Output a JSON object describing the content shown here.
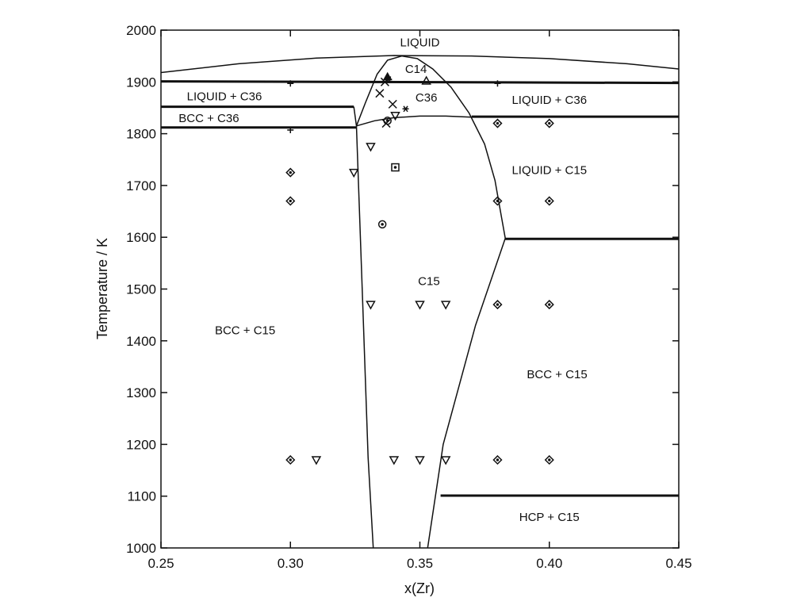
{
  "chart_data": {
    "type": "scatter",
    "title": "",
    "xlabel": "x(Zr)",
    "ylabel": "Temperature / K",
    "xlim": [
      0.25,
      0.45
    ],
    "ylim": [
      1000,
      2000
    ],
    "x_ticks": [
      "0.25",
      "0.30",
      "0.35",
      "0.40",
      "0.45"
    ],
    "y_ticks": [
      "1000",
      "1100",
      "1200",
      "1300",
      "1400",
      "1500",
      "1600",
      "1700",
      "1800",
      "1900",
      "2000"
    ],
    "grid": false,
    "legend": "none",
    "regions": [
      {
        "label": "LIQUID",
        "x": 0.35,
        "y": 1976
      },
      {
        "label": "C14",
        "x": 0.3485,
        "y": 1925
      },
      {
        "label": "LIQUID + C36",
        "x": 0.2745,
        "y": 1872
      },
      {
        "label": "C36",
        "x": 0.3525,
        "y": 1870
      },
      {
        "label": "LIQUID + C36",
        "x": 0.4,
        "y": 1865
      },
      {
        "label": "BCC + C36",
        "x": 0.2685,
        "y": 1830
      },
      {
        "label": "LIQUID + C15",
        "x": 0.4,
        "y": 1730
      },
      {
        "label": "C15",
        "x": 0.3535,
        "y": 1515
      },
      {
        "label": "BCC + C15",
        "x": 0.2825,
        "y": 1420
      },
      {
        "label": "BCC + C15",
        "x": 0.403,
        "y": 1335
      },
      {
        "label": "HCP + C15",
        "x": 0.4,
        "y": 1060
      }
    ],
    "boundaries": [
      {
        "style": "thin",
        "points": [
          [
            0.25,
            1918
          ],
          [
            0.28,
            1935
          ],
          [
            0.31,
            1946
          ],
          [
            0.34,
            1951
          ],
          [
            0.37,
            1950
          ],
          [
            0.4,
            1945
          ],
          [
            0.43,
            1935
          ],
          [
            0.45,
            1925
          ]
        ]
      },
      {
        "style": "thin",
        "points": [
          [
            0.3255,
            1815
          ],
          [
            0.329,
            1860
          ],
          [
            0.3335,
            1915
          ],
          [
            0.3375,
            1942
          ],
          [
            0.343,
            1950
          ],
          [
            0.349,
            1945
          ],
          [
            0.355,
            1925
          ],
          [
            0.362,
            1890
          ],
          [
            0.369,
            1840
          ],
          [
            0.375,
            1780
          ],
          [
            0.379,
            1710
          ],
          [
            0.3815,
            1640
          ],
          [
            0.383,
            1598
          ]
        ]
      },
      {
        "style": "thin",
        "points": [
          [
            0.3255,
            1815
          ],
          [
            0.3325,
            1825
          ],
          [
            0.34,
            1831
          ],
          [
            0.35,
            1834
          ],
          [
            0.36,
            1834
          ],
          [
            0.37,
            1832
          ]
        ]
      },
      {
        "style": "thin",
        "points": [
          [
            0.3245,
            1852
          ],
          [
            0.3255,
            1815
          ]
        ]
      },
      {
        "style": "thin",
        "points": [
          [
            0.3255,
            1815
          ],
          [
            0.328,
            1460
          ],
          [
            0.33,
            1175
          ],
          [
            0.332,
            1000
          ]
        ]
      },
      {
        "style": "thin",
        "points": [
          [
            0.383,
            1598
          ],
          [
            0.3715,
            1430
          ],
          [
            0.359,
            1200
          ],
          [
            0.353,
            1000
          ]
        ]
      },
      {
        "style": "thick",
        "points": [
          [
            0.25,
            1901
          ],
          [
            0.45,
            1898
          ]
        ]
      },
      {
        "style": "thick",
        "points": [
          [
            0.25,
            1852
          ],
          [
            0.3245,
            1852
          ]
        ]
      },
      {
        "style": "thick",
        "points": [
          [
            0.25,
            1812
          ],
          [
            0.3255,
            1812
          ]
        ]
      },
      {
        "style": "thick",
        "points": [
          [
            0.37,
            1833
          ],
          [
            0.45,
            1833
          ]
        ]
      },
      {
        "style": "thick",
        "points": [
          [
            0.383,
            1597
          ],
          [
            0.45,
            1597
          ]
        ]
      },
      {
        "style": "thick",
        "points": [
          [
            0.358,
            1101
          ],
          [
            0.45,
            1101
          ]
        ]
      }
    ],
    "series": [
      {
        "marker": "diamond",
        "points": [
          [
            0.3,
            1725
          ],
          [
            0.3,
            1670
          ],
          [
            0.3,
            1170
          ],
          [
            0.38,
            1820
          ],
          [
            0.38,
            1670
          ],
          [
            0.38,
            1470
          ],
          [
            0.38,
            1170
          ],
          [
            0.4,
            1820
          ],
          [
            0.4,
            1670
          ],
          [
            0.4,
            1470
          ],
          [
            0.4,
            1170
          ]
        ]
      },
      {
        "marker": "triangle-down",
        "points": [
          [
            0.3245,
            1725
          ],
          [
            0.331,
            1775
          ],
          [
            0.3405,
            1835
          ],
          [
            0.331,
            1470
          ],
          [
            0.35,
            1470
          ],
          [
            0.36,
            1470
          ],
          [
            0.31,
            1170
          ],
          [
            0.34,
            1170
          ],
          [
            0.35,
            1170
          ],
          [
            0.36,
            1170
          ]
        ]
      },
      {
        "marker": "triangle-up",
        "points": [
          [
            0.3525,
            1902
          ]
        ]
      },
      {
        "marker": "triangle-filled",
        "points": [
          [
            0.3375,
            1910
          ]
        ]
      },
      {
        "marker": "cross",
        "points": [
          [
            0.3345,
            1878
          ],
          [
            0.3365,
            1900
          ],
          [
            0.3395,
            1857
          ],
          [
            0.337,
            1820
          ]
        ]
      },
      {
        "marker": "plus",
        "points": [
          [
            0.3,
            1897
          ],
          [
            0.3,
            1807
          ],
          [
            0.38,
            1897
          ]
        ]
      },
      {
        "marker": "asterisk",
        "points": [
          [
            0.338,
            1905
          ],
          [
            0.3445,
            1848
          ]
        ]
      },
      {
        "marker": "square-dot",
        "points": [
          [
            0.3405,
            1735
          ]
        ]
      },
      {
        "marker": "circle-dot",
        "points": [
          [
            0.3355,
            1625
          ],
          [
            0.3375,
            1825
          ]
        ]
      }
    ]
  }
}
